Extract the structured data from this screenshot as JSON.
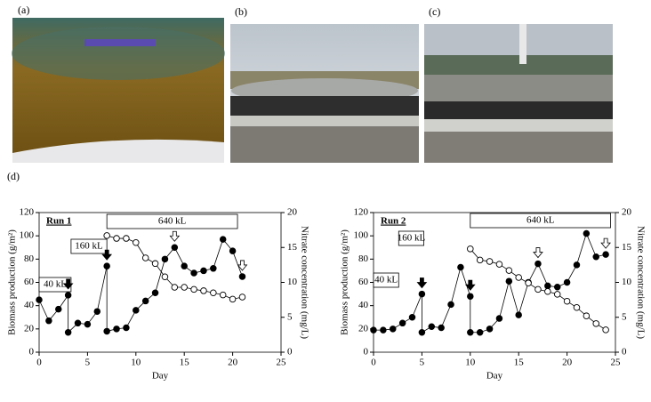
{
  "panels": {
    "a": "(a)",
    "b": "(b)",
    "c": "(c)",
    "d": "(d)"
  },
  "chart_data": [
    {
      "type": "line",
      "title": "Run 1",
      "x_label": "Day",
      "y_label": "Biomass production (g/m²)",
      "y2_label": "Nitrate concentration (mg/L)",
      "xlim": [
        0,
        25
      ],
      "xticks": [
        0,
        5,
        10,
        15,
        20,
        25
      ],
      "ylim": [
        0,
        120
      ],
      "yticks": [
        0,
        20,
        40,
        60,
        80,
        100,
        120
      ],
      "y2lim": [
        0,
        20
      ],
      "y2ticks": [
        0,
        5,
        10,
        15,
        20
      ],
      "annotations": [
        "40 kL",
        "160 kL",
        "640 kL"
      ],
      "series": [
        {
          "color": "#000000",
          "marker": "filled",
          "x": [
            0,
            1,
            2,
            3,
            3,
            4,
            5,
            6,
            7,
            7,
            8,
            9,
            10,
            11,
            12,
            13,
            14,
            15,
            16,
            17,
            18,
            19,
            20,
            21
          ],
          "values": [
            45,
            27,
            37,
            49,
            17,
            25,
            24,
            35,
            74,
            18,
            20,
            21,
            36,
            44,
            51,
            80,
            90,
            74,
            68,
            70,
            72,
            97,
            87,
            65
          ]
        },
        {
          "color": "#000000",
          "marker": "open",
          "axis": "y2",
          "x": [
            7,
            8,
            9,
            10,
            11,
            12,
            13,
            14,
            15,
            16,
            17,
            18,
            19,
            20,
            21
          ],
          "values": [
            16.7,
            16.3,
            16.3,
            15.7,
            13.5,
            12.7,
            10.8,
            9.3,
            9.3,
            9.0,
            8.8,
            8.5,
            8.2,
            7.6,
            7.9
          ]
        }
      ]
    },
    {
      "type": "line",
      "title": "Run 2",
      "x_label": "Day",
      "y_label": "Biomass production (g/m²)",
      "y2_label": "Nitrate concentration (mg/L)",
      "xlim": [
        0,
        25
      ],
      "xticks": [
        0,
        5,
        10,
        15,
        20,
        25
      ],
      "ylim": [
        0,
        120
      ],
      "yticks": [
        0,
        20,
        40,
        60,
        80,
        100,
        120
      ],
      "y2lim": [
        0,
        20
      ],
      "y2ticks": [
        0,
        5,
        10,
        15,
        20
      ],
      "annotations": [
        "40 kL",
        "160 kL",
        "640 kL"
      ],
      "series": [
        {
          "color": "#000000",
          "marker": "filled",
          "x": [
            0,
            1,
            2,
            3,
            4,
            5,
            5,
            6,
            7,
            8,
            9,
            10,
            10,
            11,
            12,
            13,
            14,
            15,
            16,
            17,
            18,
            19,
            20,
            21,
            22,
            23,
            24
          ],
          "values": [
            19,
            19,
            20,
            25,
            30,
            50,
            17,
            22,
            21,
            41,
            73,
            48,
            17,
            17,
            20,
            29,
            61,
            32,
            60,
            76,
            57,
            56,
            60,
            75,
            102,
            82,
            84
          ]
        },
        {
          "color": "#000000",
          "marker": "open",
          "axis": "y2",
          "x": [
            10,
            11,
            12,
            13,
            14,
            15,
            16,
            17,
            18,
            19,
            20,
            21,
            22,
            23,
            24
          ],
          "values": [
            14.8,
            13.2,
            13.0,
            12.6,
            11.7,
            10.7,
            9.9,
            9.0,
            8.7,
            8.3,
            7.3,
            6.4,
            5.2,
            4.1,
            3.2
          ]
        }
      ]
    }
  ]
}
